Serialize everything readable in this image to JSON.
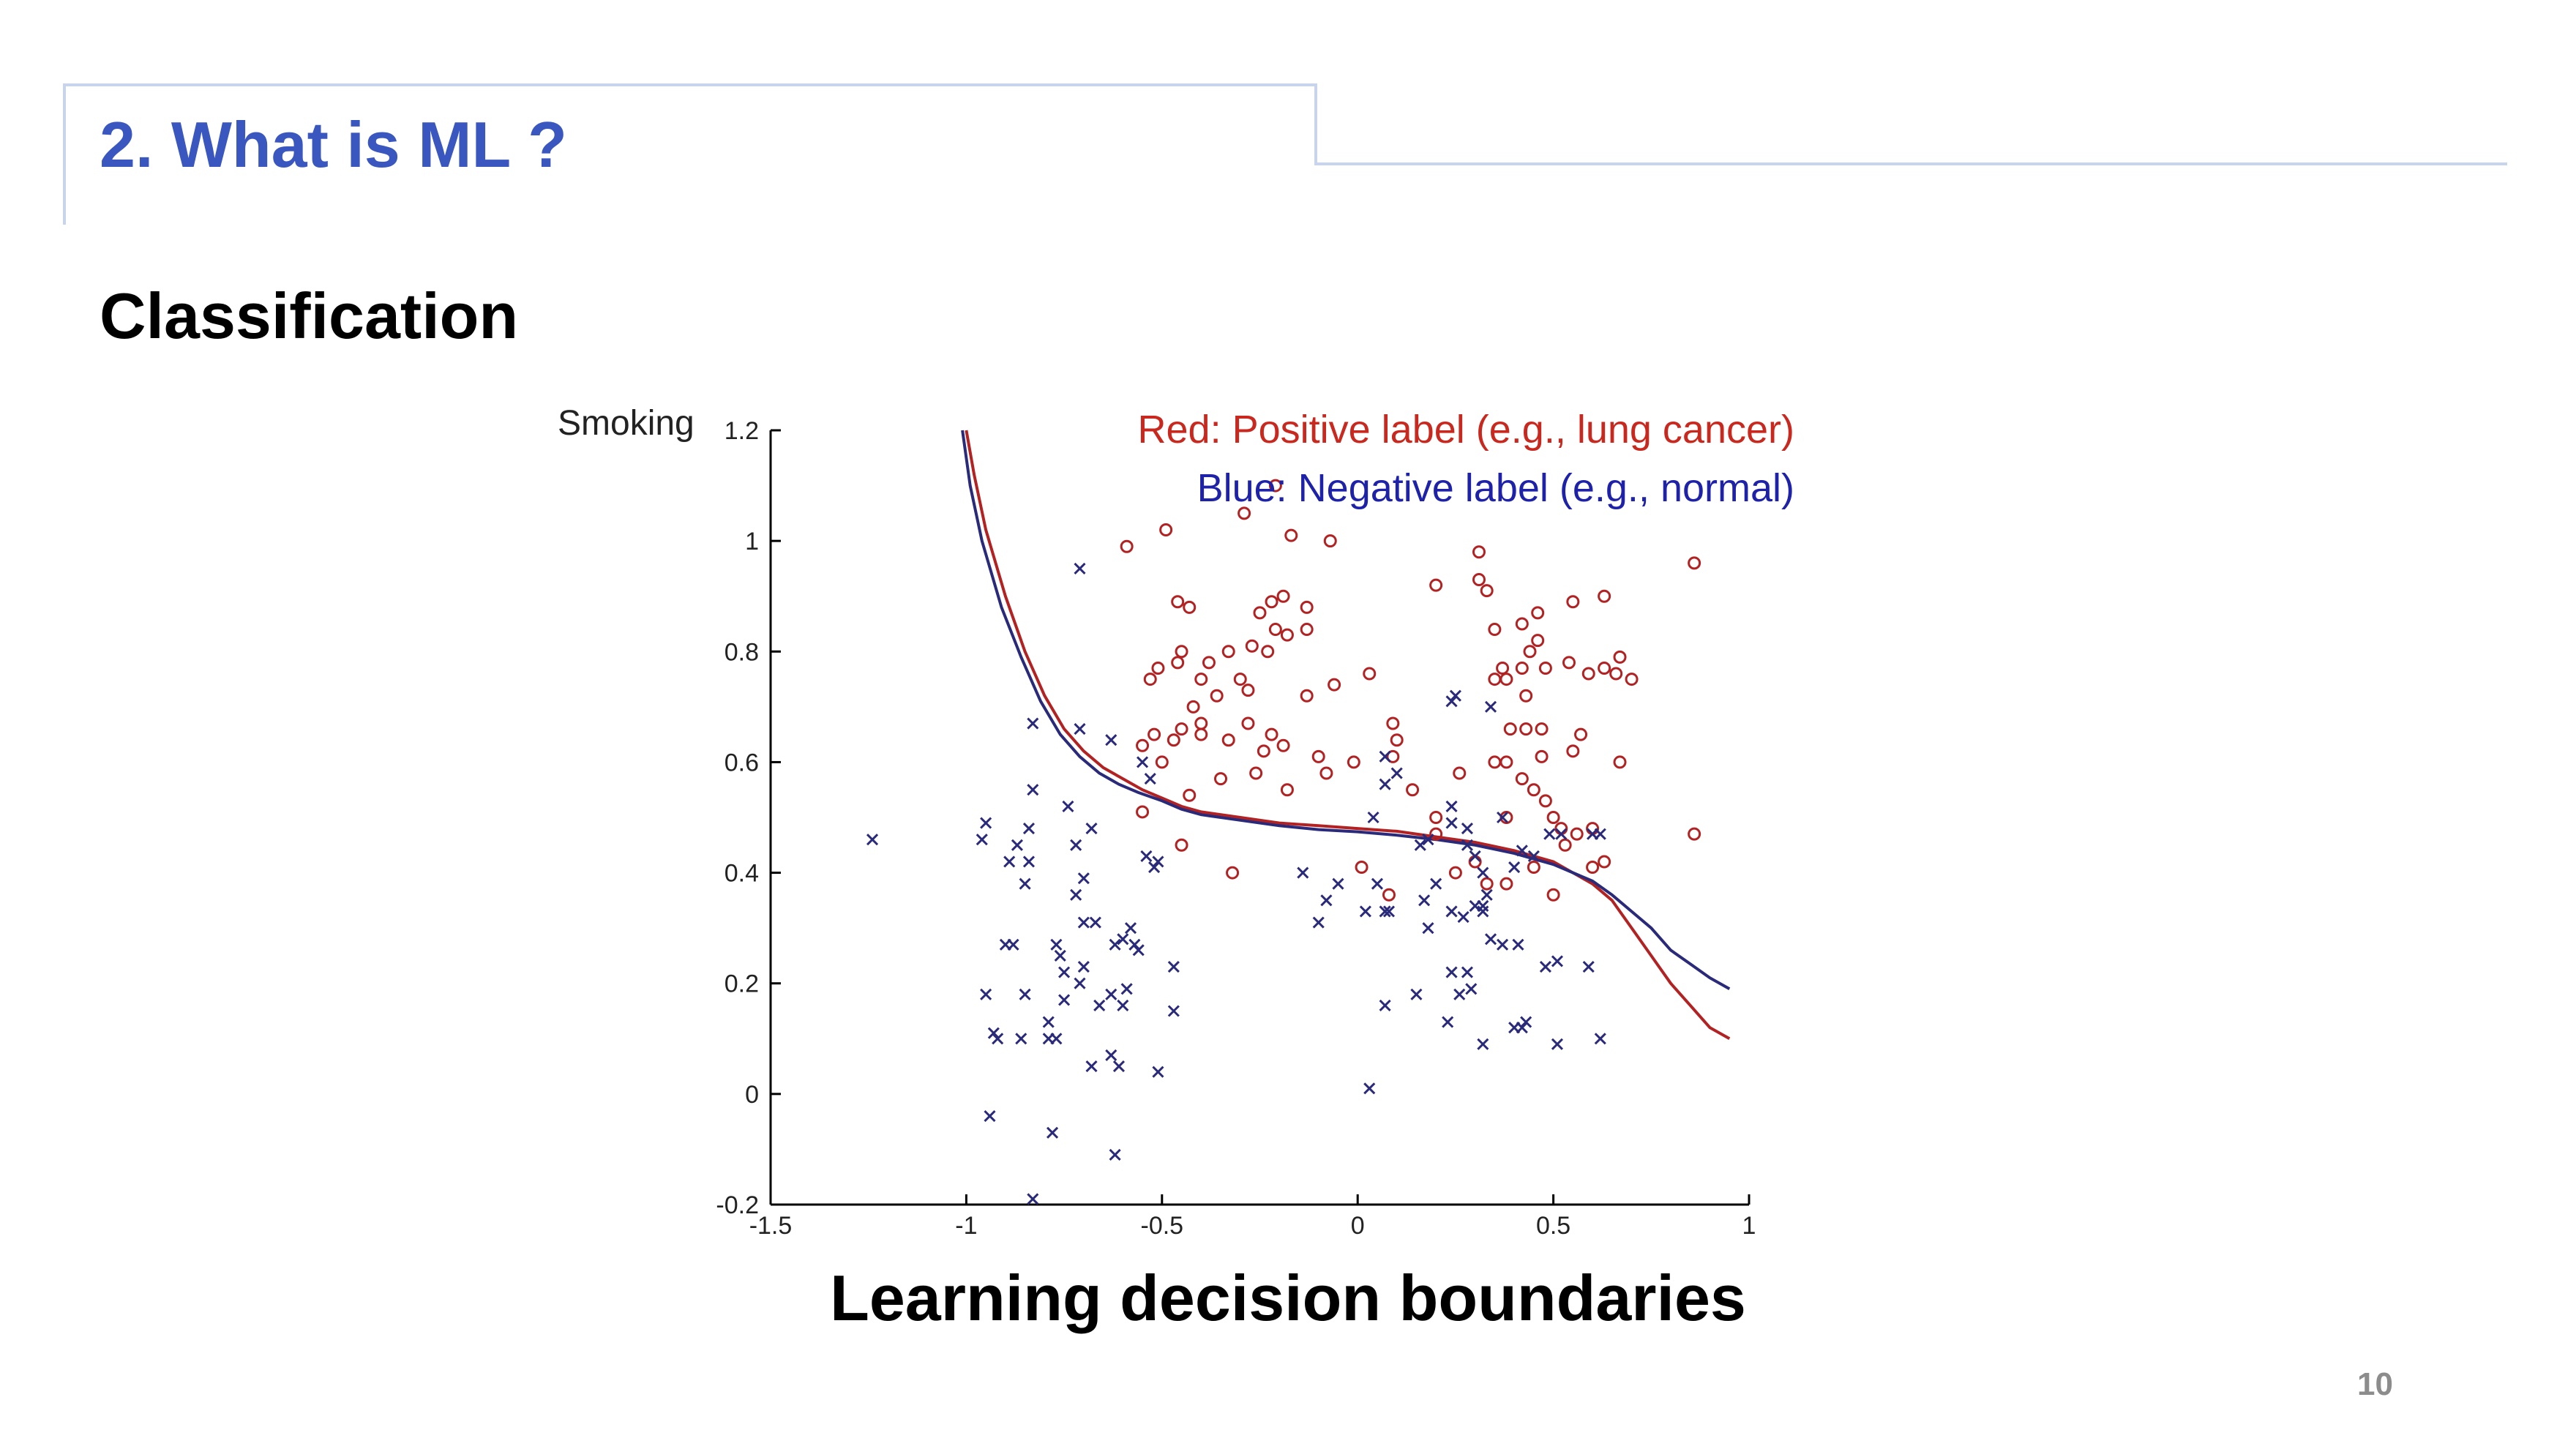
{
  "slide": {
    "title": "2. What is ML ?",
    "heading": "Classification",
    "caption": "Learning decision boundaries",
    "page_number": "10"
  },
  "colors": {
    "title": "#3a57c0",
    "frame": "#c8d3ec",
    "positive": "#b22222",
    "negative": "#2a2a7a",
    "legend_red": "#c8281e",
    "legend_blue": "#1e22a8"
  },
  "chart_data": {
    "type": "scatter",
    "ylabel": "Smoking",
    "xlabel": "",
    "xlim": [
      -1.5,
      1
    ],
    "ylim": [
      -0.2,
      1.2
    ],
    "x_ticks": [
      "-1.5",
      "-1",
      "-0.5",
      "0",
      "0.5",
      "1"
    ],
    "y_ticks": [
      "-0.2",
      "0",
      "0.2",
      "0.4",
      "0.6",
      "0.8",
      "1",
      "1.2"
    ],
    "legend": {
      "red": "Red: Positive label (e.g., lung cancer)",
      "blue": "Blue: Negative label (e.g., normal)"
    },
    "series": [
      {
        "marker": "o",
        "color": "#b22222",
        "points": [
          [
            -0.59,
            0.99
          ],
          [
            -0.49,
            1.02
          ],
          [
            -0.29,
            1.05
          ],
          [
            -0.21,
            1.1
          ],
          [
            -0.17,
            1.01
          ],
          [
            -0.07,
            1.0
          ],
          [
            -0.46,
            0.89
          ],
          [
            -0.43,
            0.88
          ],
          [
            -0.25,
            0.87
          ],
          [
            -0.22,
            0.89
          ],
          [
            -0.19,
            0.9
          ],
          [
            -0.13,
            0.88
          ],
          [
            -0.21,
            0.84
          ],
          [
            -0.18,
            0.83
          ],
          [
            -0.27,
            0.81
          ],
          [
            -0.23,
            0.8
          ],
          [
            -0.13,
            0.84
          ],
          [
            -0.45,
            0.8
          ],
          [
            -0.51,
            0.77
          ],
          [
            -0.53,
            0.75
          ],
          [
            -0.46,
            0.78
          ],
          [
            -0.4,
            0.75
          ],
          [
            -0.38,
            0.78
          ],
          [
            -0.33,
            0.8
          ],
          [
            -0.3,
            0.75
          ],
          [
            -0.28,
            0.73
          ],
          [
            -0.36,
            0.72
          ],
          [
            -0.42,
            0.7
          ],
          [
            -0.4,
            0.67
          ],
          [
            -0.45,
            0.66
          ],
          [
            -0.47,
            0.64
          ],
          [
            -0.52,
            0.65
          ],
          [
            -0.55,
            0.63
          ],
          [
            -0.5,
            0.6
          ],
          [
            -0.4,
            0.65
          ],
          [
            -0.33,
            0.64
          ],
          [
            -0.28,
            0.67
          ],
          [
            -0.22,
            0.65
          ],
          [
            -0.24,
            0.62
          ],
          [
            -0.19,
            0.63
          ],
          [
            -0.13,
            0.72
          ],
          [
            -0.06,
            0.74
          ],
          [
            -0.1,
            0.61
          ],
          [
            -0.08,
            0.58
          ],
          [
            0.03,
            0.76
          ],
          [
            0.09,
            0.67
          ],
          [
            0.1,
            0.64
          ],
          [
            -0.01,
            0.6
          ],
          [
            0.14,
            0.55
          ],
          [
            0.09,
            0.61
          ],
          [
            -0.35,
            0.57
          ],
          [
            -0.43,
            0.54
          ],
          [
            -0.18,
            0.55
          ],
          [
            -0.26,
            0.58
          ],
          [
            -0.55,
            0.51
          ],
          [
            -0.45,
            0.45
          ],
          [
            -0.32,
            0.4
          ],
          [
            0.01,
            0.41
          ],
          [
            0.08,
            0.36
          ],
          [
            0.2,
            0.5
          ],
          [
            0.2,
            0.47
          ],
          [
            0.25,
            0.4
          ],
          [
            0.3,
            0.42
          ],
          [
            0.33,
            0.38
          ],
          [
            0.38,
            0.38
          ],
          [
            0.45,
            0.41
          ],
          [
            0.5,
            0.36
          ],
          [
            0.63,
            0.42
          ],
          [
            0.6,
            0.41
          ],
          [
            0.26,
            0.58
          ],
          [
            0.35,
            0.6
          ],
          [
            0.38,
            0.6
          ],
          [
            0.42,
            0.57
          ],
          [
            0.45,
            0.55
          ],
          [
            0.48,
            0.53
          ],
          [
            0.5,
            0.5
          ],
          [
            0.52,
            0.48
          ],
          [
            0.47,
            0.61
          ],
          [
            0.55,
            0.62
          ],
          [
            0.57,
            0.65
          ],
          [
            0.47,
            0.66
          ],
          [
            0.43,
            0.66
          ],
          [
            0.39,
            0.66
          ],
          [
            0.43,
            0.72
          ],
          [
            0.38,
            0.75
          ],
          [
            0.35,
            0.75
          ],
          [
            0.37,
            0.77
          ],
          [
            0.42,
            0.77
          ],
          [
            0.48,
            0.77
          ],
          [
            0.54,
            0.78
          ],
          [
            0.59,
            0.76
          ],
          [
            0.63,
            0.77
          ],
          [
            0.66,
            0.76
          ],
          [
            0.67,
            0.79
          ],
          [
            0.7,
            0.75
          ],
          [
            0.44,
            0.8
          ],
          [
            0.46,
            0.82
          ],
          [
            0.42,
            0.85
          ],
          [
            0.35,
            0.84
          ],
          [
            0.46,
            0.87
          ],
          [
            0.63,
            0.9
          ],
          [
            0.55,
            0.89
          ],
          [
            0.31,
            0.93
          ],
          [
            0.33,
            0.91
          ],
          [
            0.2,
            0.92
          ],
          [
            0.31,
            0.98
          ],
          [
            0.67,
            0.6
          ],
          [
            0.86,
            0.96
          ],
          [
            0.86,
            0.47
          ],
          [
            0.56,
            0.47
          ],
          [
            0.6,
            0.48
          ],
          [
            0.53,
            0.45
          ],
          [
            0.38,
            0.5
          ]
        ]
      },
      {
        "marker": "x",
        "color": "#2a2a7a",
        "points": [
          [
            -0.71,
            0.95
          ],
          [
            -0.83,
            0.67
          ],
          [
            -0.71,
            0.66
          ],
          [
            -0.63,
            0.64
          ],
          [
            -0.53,
            0.57
          ],
          [
            -0.55,
            0.6
          ],
          [
            -0.83,
            0.55
          ],
          [
            -0.74,
            0.52
          ],
          [
            -0.84,
            0.48
          ],
          [
            -0.95,
            0.49
          ],
          [
            -0.96,
            0.46
          ],
          [
            -1.24,
            0.46
          ],
          [
            -0.87,
            0.45
          ],
          [
            -0.72,
            0.45
          ],
          [
            -0.68,
            0.48
          ],
          [
            -0.89,
            0.42
          ],
          [
            -0.84,
            0.42
          ],
          [
            -0.7,
            0.39
          ],
          [
            -0.51,
            0.42
          ],
          [
            -0.54,
            0.43
          ],
          [
            -0.52,
            0.41
          ],
          [
            -0.85,
            0.38
          ],
          [
            -0.72,
            0.36
          ],
          [
            -0.7,
            0.31
          ],
          [
            -0.67,
            0.31
          ],
          [
            -0.58,
            0.3
          ],
          [
            -0.6,
            0.28
          ],
          [
            -0.57,
            0.27
          ],
          [
            -0.62,
            0.27
          ],
          [
            -0.77,
            0.27
          ],
          [
            -0.76,
            0.25
          ],
          [
            -0.88,
            0.27
          ],
          [
            -0.9,
            0.27
          ],
          [
            -0.7,
            0.23
          ],
          [
            -0.56,
            0.26
          ],
          [
            -0.47,
            0.23
          ],
          [
            -0.75,
            0.22
          ],
          [
            -0.71,
            0.2
          ],
          [
            -0.63,
            0.18
          ],
          [
            -0.59,
            0.19
          ],
          [
            -0.66,
            0.16
          ],
          [
            -0.6,
            0.16
          ],
          [
            -0.75,
            0.17
          ],
          [
            -0.85,
            0.18
          ],
          [
            -0.95,
            0.18
          ],
          [
            -0.47,
            0.15
          ],
          [
            -0.79,
            0.13
          ],
          [
            -0.86,
            0.1
          ],
          [
            -0.93,
            0.11
          ],
          [
            -0.92,
            0.1
          ],
          [
            -0.79,
            0.1
          ],
          [
            -0.77,
            0.1
          ],
          [
            -0.63,
            0.07
          ],
          [
            -0.68,
            0.05
          ],
          [
            -0.61,
            0.05
          ],
          [
            -0.51,
            0.04
          ],
          [
            -0.94,
            -0.04
          ],
          [
            -0.78,
            -0.07
          ],
          [
            -0.62,
            -0.11
          ],
          [
            -0.83,
            -0.19
          ],
          [
            -0.14,
            0.4
          ],
          [
            -0.05,
            0.38
          ],
          [
            -0.08,
            0.35
          ],
          [
            0.05,
            0.38
          ],
          [
            0.07,
            0.33
          ],
          [
            0.08,
            0.33
          ],
          [
            0.02,
            0.33
          ],
          [
            -0.1,
            0.31
          ],
          [
            0.04,
            0.5
          ],
          [
            0.07,
            0.61
          ],
          [
            0.1,
            0.58
          ],
          [
            0.07,
            0.56
          ],
          [
            0.16,
            0.45
          ],
          [
            0.18,
            0.46
          ],
          [
            0.24,
            0.49
          ],
          [
            0.28,
            0.45
          ],
          [
            0.3,
            0.43
          ],
          [
            0.2,
            0.38
          ],
          [
            0.17,
            0.35
          ],
          [
            0.18,
            0.3
          ],
          [
            0.24,
            0.33
          ],
          [
            0.27,
            0.32
          ],
          [
            0.3,
            0.34
          ],
          [
            0.32,
            0.33
          ],
          [
            0.33,
            0.36
          ],
          [
            0.32,
            0.34
          ],
          [
            0.24,
            0.22
          ],
          [
            0.28,
            0.22
          ],
          [
            0.26,
            0.18
          ],
          [
            0.29,
            0.19
          ],
          [
            0.15,
            0.18
          ],
          [
            0.23,
            0.13
          ],
          [
            0.07,
            0.16
          ],
          [
            0.03,
            0.01
          ],
          [
            0.32,
            0.09
          ],
          [
            0.4,
            0.12
          ],
          [
            0.42,
            0.12
          ],
          [
            0.43,
            0.13
          ],
          [
            0.51,
            0.09
          ],
          [
            0.62,
            0.1
          ],
          [
            0.41,
            0.27
          ],
          [
            0.37,
            0.27
          ],
          [
            0.34,
            0.28
          ],
          [
            0.48,
            0.23
          ],
          [
            0.51,
            0.24
          ],
          [
            0.59,
            0.23
          ],
          [
            0.34,
            0.7
          ],
          [
            0.24,
            0.71
          ],
          [
            0.25,
            0.72
          ],
          [
            0.32,
            0.4
          ],
          [
            0.4,
            0.41
          ],
          [
            0.42,
            0.44
          ],
          [
            0.45,
            0.43
          ],
          [
            0.49,
            0.47
          ],
          [
            0.52,
            0.47
          ],
          [
            0.6,
            0.47
          ],
          [
            0.62,
            0.47
          ],
          [
            0.28,
            0.48
          ],
          [
            0.37,
            0.5
          ],
          [
            0.24,
            0.52
          ]
        ]
      }
    ],
    "boundaries": [
      {
        "color": "#b22222",
        "points": [
          [
            -1,
            1.2
          ],
          [
            -0.98,
            1.12
          ],
          [
            -0.95,
            1.02
          ],
          [
            -0.9,
            0.9
          ],
          [
            -0.85,
            0.8
          ],
          [
            -0.8,
            0.72
          ],
          [
            -0.75,
            0.66
          ],
          [
            -0.7,
            0.62
          ],
          [
            -0.65,
            0.59
          ],
          [
            -0.6,
            0.57
          ],
          [
            -0.55,
            0.55
          ],
          [
            -0.5,
            0.535
          ],
          [
            -0.45,
            0.52
          ],
          [
            -0.4,
            0.51
          ],
          [
            -0.3,
            0.5
          ],
          [
            -0.2,
            0.49
          ],
          [
            -0.1,
            0.485
          ],
          [
            0,
            0.48
          ],
          [
            0.1,
            0.475
          ],
          [
            0.2,
            0.465
          ],
          [
            0.3,
            0.455
          ],
          [
            0.4,
            0.44
          ],
          [
            0.5,
            0.42
          ],
          [
            0.6,
            0.38
          ],
          [
            0.65,
            0.35
          ],
          [
            0.7,
            0.3
          ],
          [
            0.75,
            0.25
          ],
          [
            0.8,
            0.2
          ],
          [
            0.85,
            0.16
          ],
          [
            0.9,
            0.12
          ],
          [
            0.95,
            0.1
          ]
        ]
      },
      {
        "color": "#2a2a7a",
        "points": [
          [
            -1.01,
            1.2
          ],
          [
            -0.99,
            1.1
          ],
          [
            -0.96,
            1.0
          ],
          [
            -0.91,
            0.88
          ],
          [
            -0.86,
            0.79
          ],
          [
            -0.81,
            0.71
          ],
          [
            -0.76,
            0.65
          ],
          [
            -0.71,
            0.61
          ],
          [
            -0.66,
            0.58
          ],
          [
            -0.61,
            0.56
          ],
          [
            -0.56,
            0.545
          ],
          [
            -0.5,
            0.53
          ],
          [
            -0.45,
            0.515
          ],
          [
            -0.4,
            0.505
          ],
          [
            -0.3,
            0.495
          ],
          [
            -0.2,
            0.485
          ],
          [
            -0.1,
            0.478
          ],
          [
            0,
            0.474
          ],
          [
            0.1,
            0.468
          ],
          [
            0.2,
            0.46
          ],
          [
            0.3,
            0.45
          ],
          [
            0.4,
            0.435
          ],
          [
            0.5,
            0.415
          ],
          [
            0.6,
            0.385
          ],
          [
            0.65,
            0.36
          ],
          [
            0.7,
            0.33
          ],
          [
            0.75,
            0.3
          ],
          [
            0.8,
            0.26
          ],
          [
            0.85,
            0.235
          ],
          [
            0.9,
            0.21
          ],
          [
            0.95,
            0.19
          ]
        ]
      }
    ]
  }
}
